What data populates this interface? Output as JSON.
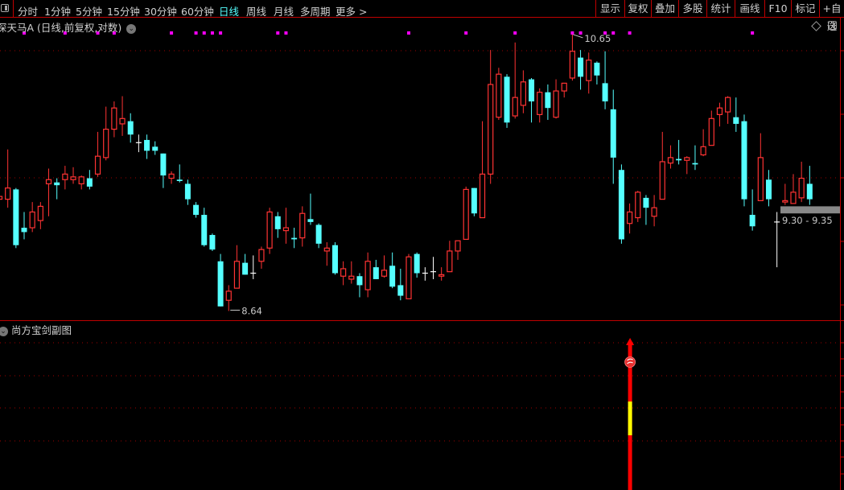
{
  "toolbar": {
    "periods": [
      "分时",
      "1分钟",
      "5分钟",
      "15分钟",
      "30分钟",
      "60分钟",
      "日线",
      "周线",
      "月线",
      "多周期",
      "更多 >"
    ],
    "active_period": "日线",
    "buttons": [
      "显示",
      "复权",
      "叠加",
      "多股",
      "统计",
      "画线",
      "F10",
      "标记",
      "+自选"
    ]
  },
  "main_chart": {
    "title": "深天马A (日线,前复权,对数)",
    "high_label": "10.65",
    "low_label": "8.64",
    "price_band_label": "9.30 - 9.35",
    "price_band": [
      9.3,
      9.35
    ]
  },
  "indicator": {
    "title": "尚方宝剑副图",
    "signal_index": 77
  },
  "colors": {
    "up": "#ff3333",
    "down": "#55ffff",
    "doji": "#ffffff",
    "grid": "#a00000",
    "signal_dot": "#ff00ff",
    "indicator_bar": "#ff0000",
    "indicator_highlight": "#ffff00"
  },
  "chart_data": {
    "type": "candlestick",
    "scale": "log",
    "ylim": [
      8.58,
      10.76
    ],
    "grid": true,
    "ohlc": [
      [
        9.4,
        9.42,
        9.4,
        9.42
      ],
      [
        9.4,
        9.76,
        9.34,
        9.48
      ],
      [
        9.47,
        9.48,
        9.06,
        9.08
      ],
      [
        9.2,
        9.31,
        9.12,
        9.17
      ],
      [
        9.2,
        9.38,
        9.17,
        9.31
      ],
      [
        9.25,
        9.38,
        9.19,
        9.35
      ],
      [
        9.51,
        9.62,
        9.28,
        9.54
      ],
      [
        9.52,
        9.55,
        9.4,
        9.5
      ],
      [
        9.54,
        9.64,
        9.47,
        9.58
      ],
      [
        9.54,
        9.63,
        9.51,
        9.56
      ],
      [
        9.51,
        9.57,
        9.47,
        9.56
      ],
      [
        9.55,
        9.61,
        9.47,
        9.49
      ],
      [
        9.58,
        9.89,
        9.56,
        9.71
      ],
      [
        9.7,
        10.08,
        9.68,
        9.91
      ],
      [
        9.91,
        10.12,
        9.85,
        10.07
      ],
      [
        9.95,
        10.16,
        9.86,
        9.99
      ],
      [
        9.97,
        10.03,
        9.81,
        9.87
      ],
      [
        9.81,
        9.87,
        9.74,
        9.81
      ],
      [
        9.83,
        9.87,
        9.69,
        9.75
      ],
      [
        9.78,
        9.82,
        9.72,
        9.75
      ],
      [
        9.73,
        9.73,
        9.48,
        9.57
      ],
      [
        9.55,
        9.6,
        9.51,
        9.58
      ],
      [
        9.54,
        9.65,
        9.52,
        9.53
      ],
      [
        9.51,
        9.54,
        9.36,
        9.4
      ],
      [
        9.36,
        9.38,
        9.27,
        9.29
      ],
      [
        9.29,
        9.34,
        9.07,
        9.08
      ],
      [
        9.15,
        9.16,
        9.04,
        9.05
      ],
      [
        8.97,
        9.02,
        8.67,
        8.67
      ],
      [
        8.71,
        8.81,
        8.64,
        8.77
      ],
      [
        8.79,
        9.08,
        8.79,
        8.97
      ],
      [
        8.96,
        9.02,
        8.88,
        8.88
      ],
      [
        8.89,
        9.01,
        8.85,
        8.89
      ],
      [
        8.97,
        9.07,
        8.92,
        9.05
      ],
      [
        9.06,
        9.34,
        9.02,
        9.31
      ],
      [
        9.28,
        9.31,
        9.13,
        9.19
      ],
      [
        9.18,
        9.34,
        9.09,
        9.2
      ],
      [
        9.13,
        9.2,
        9.06,
        9.12
      ],
      [
        9.13,
        9.35,
        9.07,
        9.3
      ],
      [
        9.26,
        9.44,
        9.22,
        9.24
      ],
      [
        9.22,
        9.23,
        9.06,
        9.09
      ],
      [
        9.04,
        9.1,
        8.94,
        9.06
      ],
      [
        9.08,
        9.1,
        8.88,
        8.89
      ],
      [
        8.87,
        8.97,
        8.81,
        8.92
      ],
      [
        8.85,
        8.97,
        8.82,
        8.87
      ],
      [
        8.87,
        8.89,
        8.73,
        8.81
      ],
      [
        8.78,
        9.03,
        8.73,
        8.97
      ],
      [
        8.93,
        8.98,
        8.85,
        8.85
      ],
      [
        8.87,
        9.01,
        8.86,
        8.91
      ],
      [
        8.94,
        9.03,
        8.79,
        8.8
      ],
      [
        8.81,
        8.92,
        8.71,
        8.74
      ],
      [
        8.72,
        9.02,
        8.72,
        9.0
      ],
      [
        9.02,
        9.03,
        8.86,
        8.89
      ],
      [
        8.89,
        8.93,
        8.84,
        8.89
      ],
      [
        8.9,
        9.0,
        8.85,
        8.9
      ],
      [
        8.87,
        8.93,
        8.84,
        8.88
      ],
      [
        8.9,
        9.11,
        8.9,
        9.04
      ],
      [
        9.04,
        9.11,
        8.98,
        9.11
      ],
      [
        9.12,
        9.49,
        9.12,
        9.47
      ],
      [
        9.48,
        9.48,
        9.28,
        9.3
      ],
      [
        9.27,
        9.97,
        9.27,
        9.58
      ],
      [
        9.58,
        10.52,
        9.51,
        10.25
      ],
      [
        10.0,
        10.38,
        9.98,
        10.33
      ],
      [
        10.31,
        10.33,
        9.92,
        9.96
      ],
      [
        10.01,
        10.58,
        9.99,
        10.15
      ],
      [
        10.09,
        10.36,
        10.03,
        10.27
      ],
      [
        10.29,
        10.3,
        9.96,
        10.12
      ],
      [
        10.02,
        10.22,
        9.96,
        10.19
      ],
      [
        10.19,
        10.25,
        9.98,
        10.07
      ],
      [
        10.0,
        10.29,
        9.99,
        10.2
      ],
      [
        10.2,
        10.26,
        10.15,
        10.26
      ],
      [
        10.3,
        10.65,
        10.28,
        10.51
      ],
      [
        10.46,
        10.52,
        10.21,
        10.31
      ],
      [
        10.28,
        10.5,
        10.18,
        10.44
      ],
      [
        10.42,
        10.43,
        10.25,
        10.32
      ],
      [
        10.26,
        10.51,
        10.06,
        10.12
      ],
      [
        10.06,
        10.21,
        9.51,
        9.7
      ],
      [
        9.61,
        9.65,
        9.09,
        9.12
      ],
      [
        9.23,
        9.37,
        9.16,
        9.31
      ],
      [
        9.27,
        9.46,
        9.24,
        9.45
      ],
      [
        9.41,
        9.43,
        9.22,
        9.34
      ],
      [
        9.28,
        9.43,
        9.21,
        9.34
      ],
      [
        9.4,
        9.89,
        9.4,
        9.67
      ],
      [
        9.66,
        9.79,
        9.62,
        9.7
      ],
      [
        9.69,
        9.83,
        9.65,
        9.68
      ],
      [
        9.68,
        9.71,
        9.58,
        9.7
      ],
      [
        9.66,
        9.79,
        9.61,
        9.65
      ],
      [
        9.72,
        9.91,
        9.71,
        9.78
      ],
      [
        9.79,
        10.05,
        9.79,
        9.99
      ],
      [
        10.02,
        10.11,
        9.93,
        10.07
      ],
      [
        10.04,
        10.16,
        9.95,
        10.15
      ],
      [
        10.0,
        10.15,
        9.89,
        9.95
      ],
      [
        9.97,
        10.02,
        9.35,
        9.4
      ],
      [
        9.29,
        9.47,
        9.18,
        9.21
      ],
      [
        9.39,
        9.88,
        9.39,
        9.7
      ],
      [
        9.54,
        9.61,
        9.35,
        9.4
      ],
      [
        9.24,
        9.31,
        8.93,
        9.24
      ],
      [
        9.38,
        9.51,
        9.36,
        9.39
      ],
      [
        9.37,
        9.58,
        9.37,
        9.45
      ],
      [
        9.41,
        9.67,
        9.38,
        9.55
      ],
      [
        9.51,
        9.64,
        9.36,
        9.4
      ]
    ],
    "signal_indices": [
      3,
      8,
      12,
      14,
      21,
      24,
      25,
      26,
      27,
      34,
      35,
      50,
      57,
      63,
      70,
      71,
      74,
      75,
      77,
      92
    ]
  }
}
